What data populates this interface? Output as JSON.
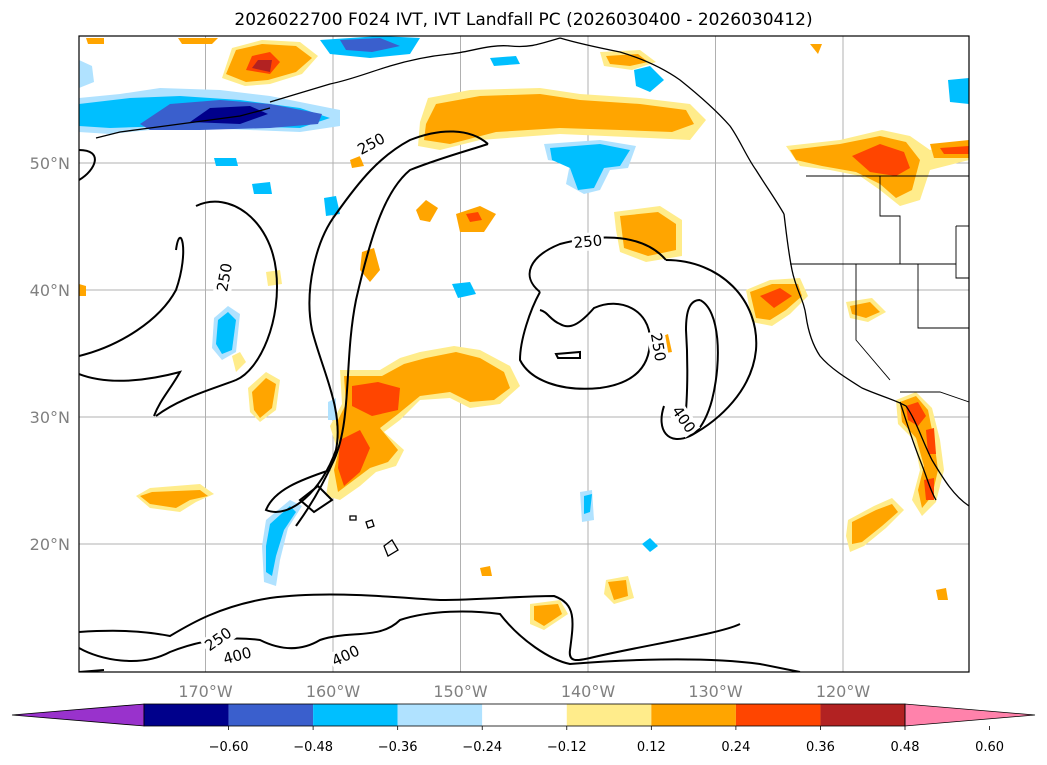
{
  "title": "2026022700 F024 IVT, IVT Landfall PC (2026030400 - 2026030412)",
  "map": {
    "lon_ticks": [
      {
        "lon": -170,
        "label": "170°W"
      },
      {
        "lon": -160,
        "label": "160°W"
      },
      {
        "lon": -150,
        "label": "150°W"
      },
      {
        "lon": -140,
        "label": "140°W"
      },
      {
        "lon": -130,
        "label": "130°W"
      },
      {
        "lon": -120,
        "label": "120°W"
      }
    ],
    "lat_ticks": [
      {
        "lat": 50,
        "label": "50°N"
      },
      {
        "lat": 40,
        "label": "40°N"
      },
      {
        "lat": 30,
        "label": "30°N"
      },
      {
        "lat": 20,
        "label": "20°N"
      }
    ],
    "contour_labels": [
      {
        "text": "250",
        "lon": -157,
        "lat": 51.5,
        "angle": -28
      },
      {
        "text": "250",
        "lon": -168.5,
        "lat": 41,
        "angle": -80
      },
      {
        "text": "250",
        "lon": -140,
        "lat": 43.8,
        "angle": -5
      },
      {
        "text": "250",
        "lon": -134.5,
        "lat": 35.5,
        "angle": 80
      },
      {
        "text": "400",
        "lon": -132.5,
        "lat": 29.8,
        "angle": 55
      },
      {
        "text": "250",
        "lon": -169,
        "lat": 12.5,
        "angle": -35
      },
      {
        "text": "400",
        "lon": -167.5,
        "lat": 11.2,
        "angle": -15
      },
      {
        "text": "400",
        "lon": -159,
        "lat": 11.2,
        "angle": -25
      }
    ]
  },
  "colorbar": {
    "colors": [
      "#9932cc",
      "#00008b",
      "#3a5fcd",
      "#00bfff",
      "#b0e2ff",
      "#ffffff",
      "#ffec8b",
      "#ffa500",
      "#ff4500",
      "#b22222",
      "#ff82ab"
    ],
    "labels": [
      "−0.60",
      "−0.48",
      "−0.36",
      "−0.24",
      "−0.12",
      "0.12",
      "0.24",
      "0.36",
      "0.48",
      "0.60"
    ],
    "levels": [
      -0.6,
      -0.48,
      -0.36,
      -0.24,
      -0.12,
      0.12,
      0.24,
      0.36,
      0.48,
      0.6
    ]
  }
}
